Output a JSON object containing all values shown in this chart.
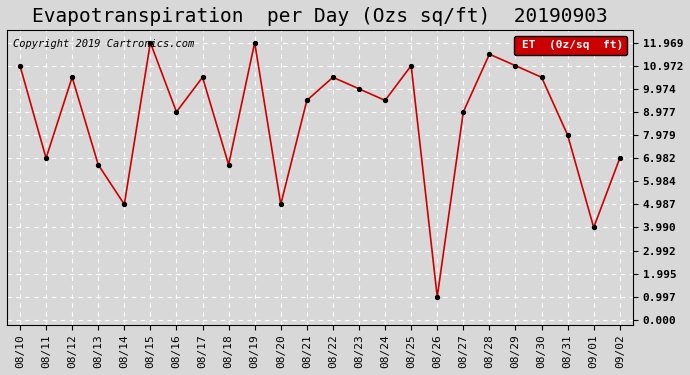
{
  "title": "Evapotranspiration  per Day (Ozs sq/ft)  20190903",
  "copyright": "Copyright 2019 Cartronics.com",
  "legend_label": "ET  (0z/sq  ft)",
  "x_labels": [
    "08/10",
    "08/11",
    "08/12",
    "08/13",
    "08/14",
    "08/15",
    "08/16",
    "08/17",
    "08/18",
    "08/19",
    "08/20",
    "08/21",
    "08/22",
    "08/23",
    "08/24",
    "08/25",
    "08/26",
    "08/27",
    "08/28",
    "08/29",
    "08/30",
    "08/31",
    "09/01",
    "09/02"
  ],
  "y_values": [
    10.972,
    6.982,
    10.472,
    6.7,
    4.987,
    11.969,
    8.977,
    10.472,
    6.7,
    11.969,
    4.987,
    9.474,
    10.472,
    9.974,
    9.474,
    10.972,
    0.997,
    8.977,
    11.469,
    10.972,
    10.472,
    7.979,
    3.99,
    6.982
  ],
  "line_color": "#cc0000",
  "marker_color": "#000000",
  "background_color": "#d8d8d8",
  "plot_bg_color": "#d8d8d8",
  "grid_color": "#ffffff",
  "legend_bg": "#cc0000",
  "legend_text": "#ffffff",
  "yticks": [
    0.0,
    0.997,
    1.995,
    2.992,
    3.99,
    4.987,
    5.984,
    6.982,
    7.979,
    8.977,
    9.974,
    10.972,
    11.969
  ],
  "ylim": [
    -0.2,
    12.5
  ],
  "title_fontsize": 14,
  "tick_fontsize": 8,
  "copyright_fontsize": 7.5
}
